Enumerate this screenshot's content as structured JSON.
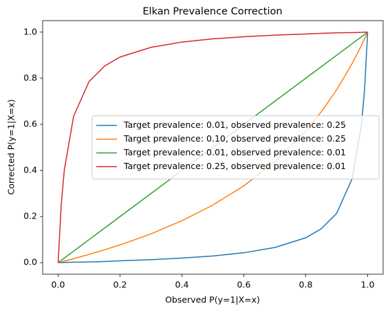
{
  "chart_data": {
    "type": "line",
    "title": "Elkan Prevalence Correction",
    "xlabel": "Observed P(y=1|X=x)",
    "ylabel": "Corrected P(y=1|X=x)",
    "x": [
      0,
      0.01,
      0.02,
      0.05,
      0.1,
      0.15,
      0.2,
      0.3,
      0.4,
      0.5,
      0.6,
      0.7,
      0.8,
      0.85,
      0.9,
      0.95,
      0.98,
      0.99,
      1
    ],
    "series": [
      {
        "name": "Target prevalence: 0.01, observed prevalence: 0.25",
        "color": "#1f77b4",
        "values": [
          0,
          0.0,
          0.001,
          0.002,
          0.003,
          0.005,
          0.008,
          0.013,
          0.02,
          0.029,
          0.043,
          0.066,
          0.108,
          0.147,
          0.214,
          0.365,
          0.598,
          0.75,
          1
        ]
      },
      {
        "name": "Target prevalence: 0.10, observed prevalence: 0.25",
        "color": "#ff7f0e",
        "values": [
          0,
          0.003,
          0.007,
          0.017,
          0.036,
          0.056,
          0.077,
          0.125,
          0.182,
          0.25,
          0.333,
          0.438,
          0.571,
          0.654,
          0.75,
          0.864,
          0.942,
          0.971,
          1
        ]
      },
      {
        "name": "Target prevalence: 0.01, observed prevalence: 0.01",
        "color": "#2ca02c",
        "values": [
          0,
          0.01,
          0.02,
          0.05,
          0.1,
          0.15,
          0.2,
          0.3,
          0.4,
          0.5,
          0.6,
          0.7,
          0.8,
          0.85,
          0.9,
          0.95,
          0.98,
          0.99,
          1
        ]
      },
      {
        "name": "Target prevalence: 0.25, observed prevalence: 0.01",
        "color": "#d62728",
        "values": [
          0,
          0.25,
          0.402,
          0.635,
          0.786,
          0.853,
          0.892,
          0.934,
          0.957,
          0.971,
          0.98,
          0.987,
          0.992,
          0.995,
          0.997,
          0.998,
          0.999,
          1.0,
          1
        ]
      }
    ],
    "xlim": [
      -0.05,
      1.05
    ],
    "ylim": [
      -0.05,
      1.05
    ],
    "xticks": [
      {
        "value": 0,
        "label": "0.0"
      },
      0.2,
      0.4,
      0.6,
      0.8,
      {
        "value": 1,
        "label": "1.0"
      }
    ],
    "yticks": [
      {
        "value": 0,
        "label": "0.0"
      },
      0.2,
      0.4,
      0.6,
      0.8,
      {
        "value": 1,
        "label": "1.0"
      }
    ],
    "grid": false,
    "legend_loc": "center right"
  }
}
